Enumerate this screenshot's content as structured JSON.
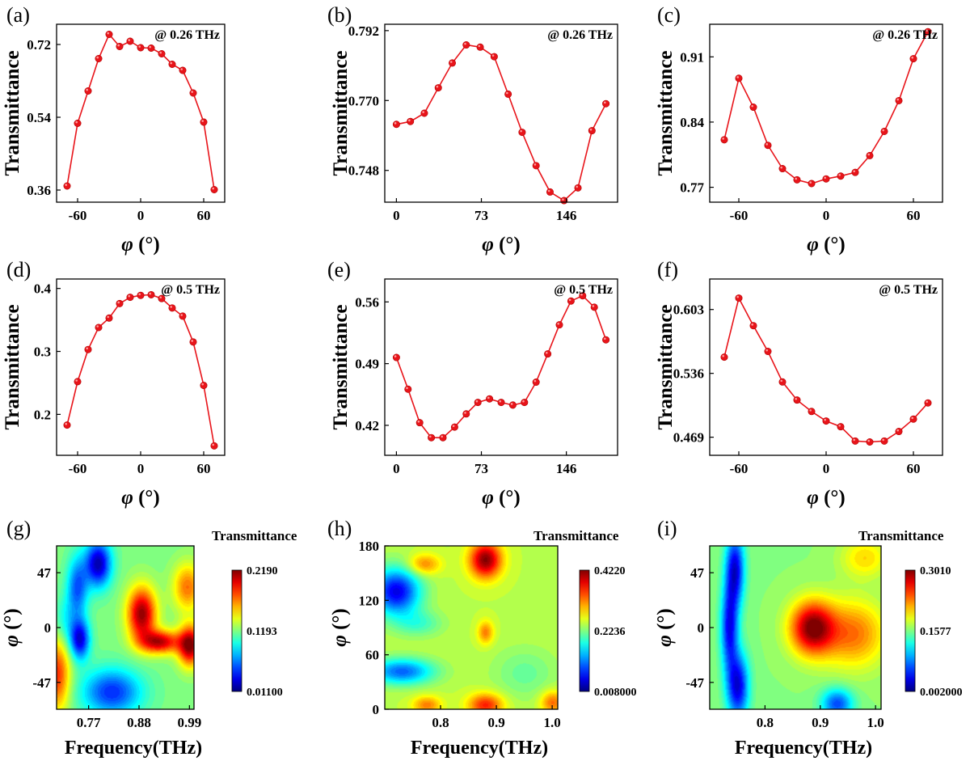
{
  "chart_data": [
    {
      "panel": "(a)",
      "type": "line",
      "annotation": "@ 0.26 THz",
      "xlabel": "φ (°)",
      "ylabel": "Transmittance",
      "xlim": [
        -80,
        80
      ],
      "ylim": [
        0.33,
        0.77
      ],
      "xticks": [
        "-60",
        "0",
        "60"
      ],
      "xtick_values": [
        -60,
        0,
        60
      ],
      "yticks": [
        "0.36",
        "0.54",
        "0.72"
      ],
      "ytick_values": [
        0.36,
        0.54,
        0.72
      ],
      "color": "#e8141a",
      "x": [
        -70,
        -60,
        -50,
        -40,
        -30,
        -20,
        -10,
        0,
        10,
        20,
        30,
        40,
        50,
        60,
        70
      ],
      "y": [
        0.37,
        0.525,
        0.605,
        0.685,
        0.745,
        0.715,
        0.728,
        0.712,
        0.711,
        0.697,
        0.671,
        0.656,
        0.6,
        0.528,
        0.361
      ]
    },
    {
      "panel": "(b)",
      "type": "line",
      "annotation": "@ 0.26 THz",
      "xlabel": "φ (°)",
      "ylabel": "Transmittance",
      "xlim": [
        -10,
        190
      ],
      "ylim": [
        0.738,
        0.794
      ],
      "xticks": [
        "0",
        "73",
        "146"
      ],
      "xtick_values": [
        0,
        73,
        146
      ],
      "yticks": [
        "0.748",
        "0.770",
        "0.792"
      ],
      "ytick_values": [
        0.748,
        0.77,
        0.792
      ],
      "color": "#e8141a",
      "x": [
        0,
        12,
        24,
        36,
        48,
        60,
        72,
        84,
        96,
        108,
        120,
        132,
        144,
        156,
        168,
        180
      ],
      "y": [
        0.7625,
        0.7634,
        0.766,
        0.774,
        0.7818,
        0.7875,
        0.7868,
        0.7838,
        0.772,
        0.76,
        0.7495,
        0.7412,
        0.7385,
        0.7425,
        0.7605,
        0.769
      ]
    },
    {
      "panel": "(c)",
      "type": "line",
      "annotation": "@ 0.26 THz",
      "xlabel": "φ (°)",
      "ylabel": "Transmittance",
      "xlim": [
        -80,
        80
      ],
      "ylim": [
        0.754,
        0.945
      ],
      "xticks": [
        "-60",
        "0",
        "60"
      ],
      "xtick_values": [
        -60,
        0,
        60
      ],
      "yticks": [
        "0.77",
        "0.84",
        "0.91"
      ],
      "ytick_values": [
        0.77,
        0.84,
        0.91
      ],
      "color": "#e8141a",
      "x": [
        -70,
        -60,
        -50,
        -40,
        -30,
        -20,
        -10,
        0,
        10,
        20,
        30,
        40,
        50,
        60,
        70
      ],
      "y": [
        0.821,
        0.887,
        0.856,
        0.815,
        0.79,
        0.778,
        0.774,
        0.779,
        0.782,
        0.786,
        0.804,
        0.83,
        0.863,
        0.908,
        0.937
      ]
    },
    {
      "panel": "(d)",
      "type": "line",
      "annotation": "@ 0.5 THz",
      "xlabel": "φ (°)",
      "ylabel": "Transmittance",
      "xlim": [
        -80,
        80
      ],
      "ylim": [
        0.135,
        0.415
      ],
      "xticks": [
        "-60",
        "0",
        "60"
      ],
      "xtick_values": [
        -60,
        0,
        60
      ],
      "yticks": [
        "0.2",
        "0.3",
        "0.4"
      ],
      "ytick_values": [
        0.2,
        0.3,
        0.4
      ],
      "color": "#e8141a",
      "x": [
        -70,
        -60,
        -50,
        -40,
        -30,
        -20,
        -10,
        0,
        10,
        20,
        30,
        40,
        50,
        60,
        70
      ],
      "y": [
        0.183,
        0.252,
        0.303,
        0.338,
        0.353,
        0.376,
        0.386,
        0.389,
        0.39,
        0.384,
        0.369,
        0.356,
        0.315,
        0.246,
        0.15
      ]
    },
    {
      "panel": "(e)",
      "type": "line",
      "annotation": "@ 0.5 THz",
      "xlabel": "φ (°)",
      "ylabel": "Transmittance",
      "xlim": [
        -10,
        190
      ],
      "ylim": [
        0.386,
        0.586
      ],
      "xticks": [
        "0",
        "73",
        "146"
      ],
      "xtick_values": [
        0,
        73,
        146
      ],
      "yticks": [
        "0.42",
        "0.49",
        "0.56"
      ],
      "ytick_values": [
        0.42,
        0.49,
        0.56
      ],
      "color": "#e8141a",
      "x": [
        0,
        10,
        20,
        30,
        40,
        50,
        60,
        70,
        80,
        90,
        100,
        110,
        120,
        130,
        140,
        150,
        160,
        170,
        180
      ],
      "y": [
        0.497,
        0.461,
        0.423,
        0.406,
        0.406,
        0.418,
        0.433,
        0.446,
        0.45,
        0.446,
        0.443,
        0.446,
        0.469,
        0.501,
        0.534,
        0.561,
        0.567,
        0.554,
        0.517
      ]
    },
    {
      "panel": "(f)",
      "type": "line",
      "annotation": "@ 0.5 THz",
      "xlabel": "φ (°)",
      "ylabel": "Transmittance",
      "xlim": [
        -80,
        80
      ],
      "ylim": [
        0.45,
        0.635
      ],
      "xticks": [
        "-60",
        "0",
        "60"
      ],
      "xtick_values": [
        -60,
        0,
        60
      ],
      "yticks": [
        "0.469",
        "0.536",
        "0.603"
      ],
      "ytick_values": [
        0.469,
        0.536,
        0.603
      ],
      "color": "#e8141a",
      "x": [
        -70,
        -60,
        -50,
        -40,
        -30,
        -20,
        -10,
        0,
        10,
        20,
        30,
        40,
        50,
        60,
        70
      ],
      "y": [
        0.553,
        0.615,
        0.586,
        0.559,
        0.527,
        0.508,
        0.496,
        0.486,
        0.48,
        0.465,
        0.464,
        0.465,
        0.475,
        0.488,
        0.505
      ]
    },
    {
      "panel": "(g)",
      "type": "heatmap",
      "colorbar_title": "Transmittance",
      "xlabel": "Frequency(THz)",
      "ylabel": "φ (°)",
      "xlim": [
        0.7,
        1.0
      ],
      "ylim": [
        -70,
        70
      ],
      "xticks": [
        "0.77",
        "0.88",
        "0.99"
      ],
      "xtick_values": [
        0.77,
        0.88,
        0.99
      ],
      "yticks": [
        "-47",
        "0",
        "47"
      ],
      "ytick_values": [
        -47,
        0,
        47
      ],
      "colorbar_ticks": [
        "0.01100",
        "0.1193",
        "0.2190"
      ],
      "colorbar_range": [
        0.011,
        0.219
      ],
      "background": 0.115,
      "features": [
        {
          "x": 0.885,
          "y": 12,
          "sx": 0.022,
          "sy": 16,
          "v": 0.215
        },
        {
          "x": 0.925,
          "y": -12,
          "sx": 0.03,
          "sy": 7,
          "v": 0.205
        },
        {
          "x": 0.99,
          "y": -15,
          "sx": 0.018,
          "sy": 12,
          "v": 0.218
        },
        {
          "x": 0.985,
          "y": 35,
          "sx": 0.022,
          "sy": 14,
          "v": 0.17
        },
        {
          "x": 0.7,
          "y": -40,
          "sx": 0.02,
          "sy": 22,
          "v": 0.185
        },
        {
          "x": 0.79,
          "y": 55,
          "sx": 0.02,
          "sy": 14,
          "v": 0.02
        },
        {
          "x": 0.745,
          "y": 35,
          "sx": 0.016,
          "sy": 18,
          "v": 0.055
        },
        {
          "x": 0.75,
          "y": -10,
          "sx": 0.015,
          "sy": 12,
          "v": 0.03
        },
        {
          "x": 0.82,
          "y": -55,
          "sx": 0.045,
          "sy": 14,
          "v": 0.045
        },
        {
          "x": 0.72,
          "y": 5,
          "sx": 0.018,
          "sy": 15,
          "v": 0.09
        }
      ]
    },
    {
      "panel": "(h)",
      "type": "heatmap",
      "colorbar_title": "Transmittance",
      "xlabel": "Frequency(THz)",
      "ylabel": "φ (°)",
      "xlim": [
        0.7,
        1.01
      ],
      "ylim": [
        0,
        180
      ],
      "xticks": [
        "0.8",
        "0.9",
        "1.0"
      ],
      "xtick_values": [
        0.8,
        0.9,
        1.0
      ],
      "yticks": [
        "0",
        "60",
        "120",
        "180"
      ],
      "ytick_values": [
        0,
        60,
        120,
        180
      ],
      "colorbar_ticks": [
        "0.008000",
        "0.2236",
        "0.4220"
      ],
      "colorbar_range": [
        0.008,
        0.422
      ],
      "background": 0.24,
      "features": [
        {
          "x": 0.88,
          "y": 165,
          "sx": 0.02,
          "sy": 14,
          "v": 0.42
        },
        {
          "x": 0.77,
          "y": 160,
          "sx": 0.02,
          "sy": 8,
          "v": 0.32
        },
        {
          "x": 0.88,
          "y": 5,
          "sx": 0.022,
          "sy": 9,
          "v": 0.36
        },
        {
          "x": 0.775,
          "y": 5,
          "sx": 0.018,
          "sy": 7,
          "v": 0.32
        },
        {
          "x": 1.0,
          "y": 8,
          "sx": 0.015,
          "sy": 9,
          "v": 0.33
        },
        {
          "x": 0.88,
          "y": 85,
          "sx": 0.01,
          "sy": 9,
          "v": 0.32
        },
        {
          "x": 0.72,
          "y": 130,
          "sx": 0.03,
          "sy": 18,
          "v": 0.05
        },
        {
          "x": 0.73,
          "y": 42,
          "sx": 0.04,
          "sy": 10,
          "v": 0.1
        },
        {
          "x": 0.76,
          "y": 95,
          "sx": 0.03,
          "sy": 10,
          "v": 0.19
        },
        {
          "x": 0.95,
          "y": 40,
          "sx": 0.04,
          "sy": 20,
          "v": 0.205
        }
      ]
    },
    {
      "panel": "(i)",
      "type": "heatmap",
      "colorbar_title": "Transmittance",
      "xlabel": "Frequency(THz)",
      "ylabel": "φ (°)",
      "xlim": [
        0.7,
        1.01
      ],
      "ylim": [
        -70,
        70
      ],
      "xticks": [
        "0.8",
        "0.9",
        "1.0"
      ],
      "xtick_values": [
        0.8,
        0.9,
        1.0
      ],
      "yticks": [
        "-47",
        "0",
        "47"
      ],
      "ytick_values": [
        -47,
        0,
        47
      ],
      "colorbar_ticks": [
        "0.002000",
        "0.1577",
        "0.3010"
      ],
      "colorbar_range": [
        0.002,
        0.301
      ],
      "background": 0.155,
      "features": [
        {
          "x": 0.885,
          "y": 0,
          "sx": 0.028,
          "sy": 16,
          "v": 0.3
        },
        {
          "x": 0.96,
          "y": -5,
          "sx": 0.04,
          "sy": 20,
          "v": 0.23
        },
        {
          "x": 0.745,
          "y": 50,
          "sx": 0.012,
          "sy": 22,
          "v": 0.03
        },
        {
          "x": 0.735,
          "y": 0,
          "sx": 0.011,
          "sy": 25,
          "v": 0.04
        },
        {
          "x": 0.75,
          "y": -50,
          "sx": 0.014,
          "sy": 20,
          "v": 0.03
        },
        {
          "x": 0.93,
          "y": -65,
          "sx": 0.02,
          "sy": 9,
          "v": 0.06
        },
        {
          "x": 0.98,
          "y": 60,
          "sx": 0.03,
          "sy": 12,
          "v": 0.2
        }
      ]
    }
  ]
}
